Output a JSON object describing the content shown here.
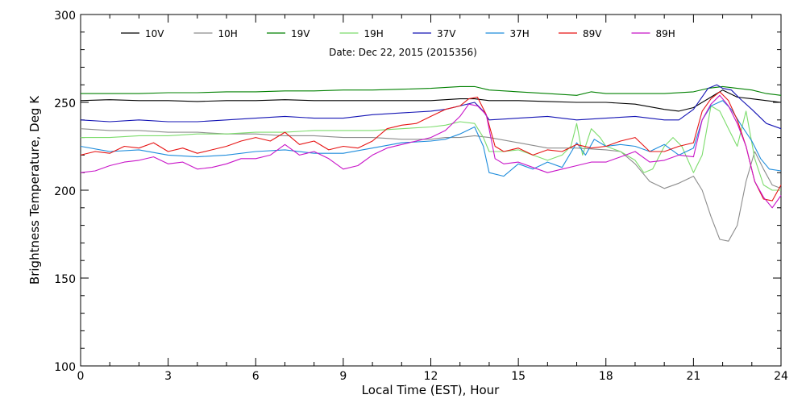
{
  "chart_data": {
    "type": "line",
    "subtitle": "Date: Dec 22, 2015 (2015356)",
    "xlabel": "Local Time (EST), Hour",
    "ylabel": "Brightness Temperature, Deg K",
    "xlim": [
      0,
      24
    ],
    "ylim": [
      100,
      300
    ],
    "xticks": [
      0,
      3,
      6,
      9,
      12,
      15,
      18,
      21,
      24
    ],
    "yticks": [
      100,
      150,
      200,
      250,
      300
    ],
    "grid": false,
    "legend_position": "top",
    "series": [
      {
        "name": "10V",
        "color": "#000000",
        "x": [
          0,
          1,
          2,
          3,
          4,
          5,
          6,
          7,
          8,
          9,
          10,
          11,
          12,
          13,
          13.5,
          14,
          15,
          16,
          17,
          18,
          19,
          20,
          20.5,
          21,
          21.5,
          22,
          22.5,
          23,
          23.5,
          24
        ],
        "y": [
          251,
          251.5,
          251,
          251,
          250.5,
          251,
          251,
          251.5,
          251,
          251,
          251,
          251,
          251,
          252,
          252,
          251,
          251,
          250.5,
          250,
          250,
          249,
          246,
          245,
          247,
          252,
          257,
          253,
          252,
          251,
          250
        ]
      },
      {
        "name": "10H",
        "color": "#8c8c8c",
        "x": [
          0,
          1,
          2,
          3,
          4,
          5,
          6,
          7,
          8,
          9,
          10,
          11,
          12,
          12.5,
          13,
          13.5,
          14,
          15,
          16,
          17,
          18,
          18.5,
          19,
          19.5,
          20,
          20.5,
          21,
          21.3,
          21.6,
          21.9,
          22.2,
          22.5,
          22.8,
          23.1,
          23.4,
          23.7,
          24
        ],
        "y": [
          235,
          234,
          234,
          233,
          233,
          232,
          232,
          231,
          231,
          230,
          230,
          229,
          229,
          230,
          230,
          231,
          230,
          227,
          224,
          224,
          223,
          222,
          215,
          205,
          201,
          204,
          208,
          200,
          185,
          172,
          171,
          180,
          205,
          222,
          212,
          203,
          201
        ]
      },
      {
        "name": "19V",
        "color": "#008000",
        "x": [
          0,
          1,
          2,
          3,
          4,
          5,
          6,
          7,
          8,
          9,
          10,
          11,
          12,
          13,
          13.5,
          14,
          15,
          16,
          17,
          17.5,
          18,
          19,
          20,
          21,
          21.5,
          22,
          22.5,
          23,
          23.5,
          24
        ],
        "y": [
          255,
          255,
          255,
          255.5,
          255.5,
          256,
          256,
          256.5,
          256.5,
          257,
          257,
          257.5,
          258,
          259,
          259,
          257,
          256,
          255,
          254,
          256,
          255,
          255,
          255,
          256,
          258,
          259,
          258,
          257,
          255,
          254
        ]
      },
      {
        "name": "19H",
        "color": "#7cdc6c",
        "x": [
          0,
          1,
          2,
          3,
          4,
          5,
          6,
          7,
          8,
          9,
          10,
          11,
          12,
          12.5,
          13,
          13.5,
          13.8,
          14,
          14.5,
          15,
          15.5,
          16,
          16.5,
          16.8,
          17,
          17.2,
          17.5,
          17.8,
          18,
          18.5,
          19,
          19.3,
          19.6,
          20,
          20.3,
          20.6,
          21,
          21.3,
          21.6,
          21.9,
          22.2,
          22.5,
          22.8,
          23.1,
          23.4,
          23.7,
          24
        ],
        "y": [
          230,
          230,
          231,
          231,
          232,
          232,
          233,
          233,
          234,
          234,
          234,
          235,
          236,
          237,
          239,
          238,
          230,
          222,
          222,
          223,
          220,
          217,
          220,
          225,
          238,
          220,
          235,
          230,
          225,
          222,
          217,
          210,
          212,
          225,
          230,
          225,
          210,
          220,
          248,
          245,
          235,
          225,
          245,
          218,
          203,
          200,
          200
        ]
      },
      {
        "name": "37V",
        "color": "#1414b4",
        "x": [
          0,
          1,
          2,
          3,
          4,
          5,
          6,
          7,
          8,
          9,
          10,
          11,
          12,
          12.5,
          13,
          13.5,
          13.8,
          14,
          15,
          16,
          17,
          18,
          19,
          20,
          20.5,
          21,
          21.5,
          21.8,
          22,
          22.3,
          22.6,
          23,
          23.5,
          24
        ],
        "y": [
          240,
          239,
          240,
          239,
          239,
          240,
          241,
          242,
          241,
          241,
          243,
          244,
          245,
          246,
          248,
          250,
          245,
          240,
          241,
          242,
          240,
          241,
          242,
          240,
          240,
          246,
          258,
          260,
          258,
          257,
          252,
          246,
          238,
          235
        ]
      },
      {
        "name": "37H",
        "color": "#1e8cdc",
        "x": [
          0,
          1,
          2,
          3,
          4,
          5,
          6,
          7,
          8,
          9,
          10,
          11,
          12,
          12.5,
          13,
          13.5,
          13.8,
          14,
          14.5,
          15,
          15.5,
          16,
          16.5,
          17,
          17.3,
          17.6,
          18,
          18.5,
          19,
          19.5,
          20,
          20.5,
          21,
          21.3,
          21.6,
          22,
          22.3,
          22.6,
          23,
          23.3,
          23.6,
          24
        ],
        "y": [
          225,
          222,
          223,
          220,
          219,
          220,
          222,
          223,
          221,
          221,
          224,
          227,
          228,
          229,
          232,
          236,
          225,
          210,
          208,
          215,
          212,
          216,
          213,
          227,
          220,
          229,
          225,
          226,
          225,
          222,
          226,
          220,
          224,
          240,
          248,
          251,
          246,
          238,
          228,
          218,
          212,
          211
        ]
      },
      {
        "name": "89V",
        "color": "#e61414",
        "x": [
          0,
          0.5,
          1,
          1.5,
          2,
          2.5,
          3,
          3.5,
          4,
          4.5,
          5,
          5.5,
          6,
          6.5,
          7,
          7.5,
          8,
          8.5,
          9,
          9.5,
          10,
          10.5,
          11,
          11.5,
          12,
          12.5,
          13,
          13.3,
          13.6,
          13.9,
          14.2,
          14.5,
          15,
          15.5,
          16,
          16.5,
          17,
          17.5,
          18,
          18.5,
          19,
          19.5,
          20,
          20.5,
          21,
          21.3,
          21.6,
          21.9,
          22.2,
          22.5,
          22.8,
          23.1,
          23.4,
          23.7,
          24
        ],
        "y": [
          220,
          222,
          221,
          225,
          224,
          227,
          222,
          224,
          221,
          223,
          225,
          228,
          230,
          228,
          233,
          226,
          228,
          223,
          225,
          224,
          228,
          235,
          237,
          238,
          242,
          246,
          248,
          252,
          253,
          243,
          225,
          222,
          224,
          220,
          223,
          222,
          226,
          224,
          225,
          228,
          230,
          222,
          222,
          225,
          227,
          245,
          252,
          256,
          251,
          240,
          225,
          205,
          195,
          194,
          203
        ]
      },
      {
        "name": "89H",
        "color": "#c814c8",
        "x": [
          0,
          0.5,
          1,
          1.5,
          2,
          2.5,
          3,
          3.5,
          4,
          4.5,
          5,
          5.5,
          6,
          6.5,
          7,
          7.5,
          8,
          8.5,
          9,
          9.5,
          10,
          10.5,
          11,
          11.5,
          12,
          12.5,
          13,
          13.3,
          13.6,
          13.9,
          14.2,
          14.5,
          15,
          15.5,
          16,
          16.5,
          17,
          17.5,
          18,
          18.5,
          19,
          19.5,
          20,
          20.5,
          21,
          21.3,
          21.6,
          21.9,
          22.2,
          22.5,
          22.8,
          23.1,
          23.4,
          23.7,
          24
        ],
        "y": [
          210,
          211,
          214,
          216,
          217,
          219,
          215,
          216,
          212,
          213,
          215,
          218,
          218,
          220,
          226,
          220,
          222,
          218,
          212,
          214,
          220,
          224,
          226,
          228,
          230,
          234,
          242,
          249,
          248,
          243,
          218,
          215,
          216,
          213,
          210,
          212,
          214,
          216,
          216,
          219,
          222,
          216,
          217,
          220,
          219,
          240,
          249,
          254,
          248,
          238,
          225,
          205,
          196,
          190,
          197
        ]
      }
    ]
  }
}
